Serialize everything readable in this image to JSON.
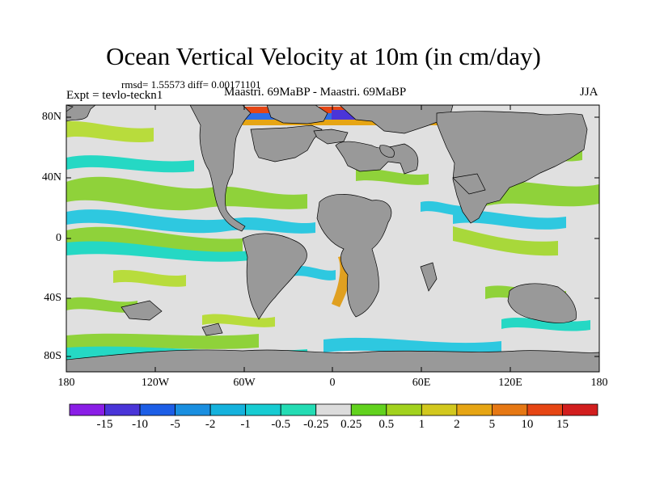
{
  "title": "Ocean Vertical Velocity at 10m (in cm/day)",
  "stats": "rmsd= 1.55573 diff= 0.00171101",
  "experiment": "Expt = tevlo-teckn1",
  "comparison": "Maastri.  69MaBP - Maastri.  69MaBP",
  "season": "JJA",
  "latitude_labels": [
    "80N",
    "40N",
    "0",
    "40S",
    "80S"
  ],
  "longitude_labels": [
    "180",
    "120W",
    "60W",
    "0",
    "60E",
    "120E",
    "180"
  ],
  "colorbar": {
    "labels": [
      "-15",
      "-10",
      "-5",
      "-2",
      "-1",
      "-0.5",
      "-0.25",
      "0.25",
      "0.5",
      "1",
      "2",
      "5",
      "10",
      "15"
    ],
    "colors": [
      "#8a1ee6",
      "#4a35d8",
      "#1d5ee6",
      "#1a8fe0",
      "#15b2dd",
      "#17ccd2",
      "#24dcb4",
      "#dcdcdc",
      "#62d21e",
      "#a2d21e",
      "#d2c81e",
      "#e6a514",
      "#e67814",
      "#e64614",
      "#d21e1e"
    ]
  },
  "colors": {
    "land": "#999999",
    "near_zero": "#e0e0e0",
    "positive": "#9ad64a",
    "negative": "#2ed7c8"
  }
}
